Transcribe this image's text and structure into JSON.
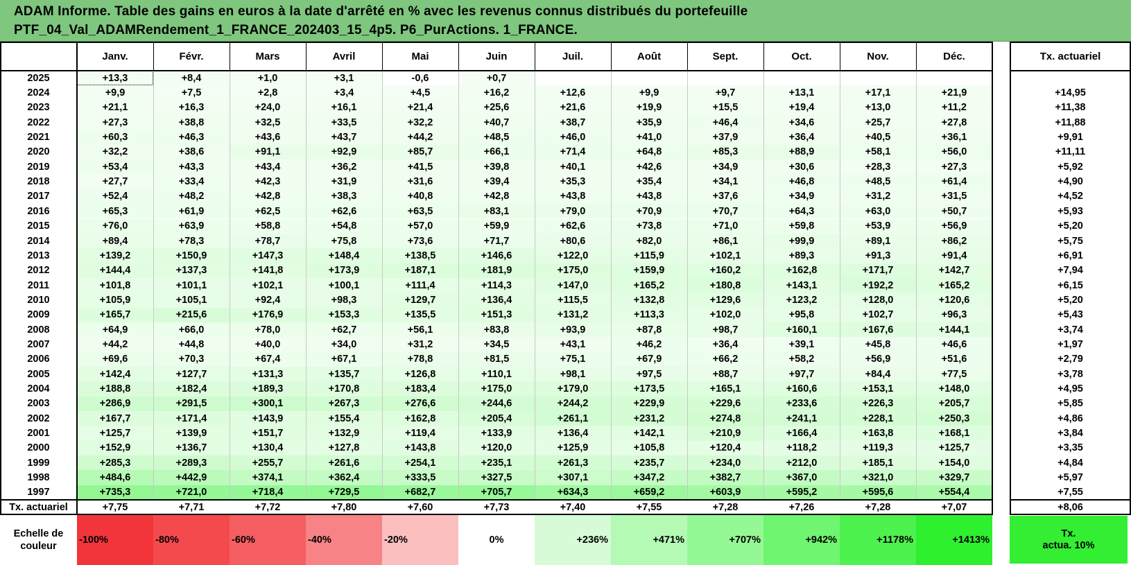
{
  "title": {
    "line1": "ADAM Informe. Table des gains en euros à la date d'arrêté en % avec les revenus connus distribués du portefeuille",
    "line2": "PTF_04_Val_ADAMRendement_1_FRANCE_202403_15_4p5. P6_PurActions. 1_FRANCE."
  },
  "months": [
    "Janv.",
    "Févr.",
    "Mars",
    "Avril",
    "Mai",
    "Juin",
    "Juil.",
    "Août",
    "Sept.",
    "Oct.",
    "Nov.",
    "Déc."
  ],
  "rate_header": "Tx. actuariel",
  "rows": [
    {
      "year": "2025",
      "values": [
        "+13,3",
        "+8,4",
        "+1,0",
        "+3,1",
        "-0,6",
        "+0,7",
        "",
        "",
        "",
        "",
        "",
        ""
      ],
      "rate": ""
    },
    {
      "year": "2024",
      "values": [
        "+9,9",
        "+7,5",
        "+2,8",
        "+3,4",
        "+4,5",
        "+16,2",
        "+12,6",
        "+9,9",
        "+9,7",
        "+13,1",
        "+17,1",
        "+21,9"
      ],
      "rate": "+14,95"
    },
    {
      "year": "2023",
      "values": [
        "+21,1",
        "+16,3",
        "+24,0",
        "+16,1",
        "+21,4",
        "+25,6",
        "+21,6",
        "+19,9",
        "+15,5",
        "+19,4",
        "+13,0",
        "+11,2"
      ],
      "rate": "+11,38"
    },
    {
      "year": "2022",
      "values": [
        "+27,3",
        "+38,8",
        "+32,5",
        "+33,5",
        "+32,2",
        "+40,7",
        "+38,7",
        "+35,9",
        "+46,4",
        "+34,6",
        "+25,7",
        "+27,8"
      ],
      "rate": "+11,88"
    },
    {
      "year": "2021",
      "values": [
        "+60,3",
        "+46,3",
        "+43,6",
        "+43,7",
        "+44,2",
        "+48,5",
        "+46,0",
        "+41,0",
        "+37,9",
        "+36,4",
        "+40,5",
        "+36,1"
      ],
      "rate": "+9,91"
    },
    {
      "year": "2020",
      "values": [
        "+32,2",
        "+38,6",
        "+91,1",
        "+92,9",
        "+85,7",
        "+66,1",
        "+71,4",
        "+64,8",
        "+85,3",
        "+88,9",
        "+58,1",
        "+56,0"
      ],
      "rate": "+11,11"
    },
    {
      "year": "2019",
      "values": [
        "+53,4",
        "+43,3",
        "+43,4",
        "+36,2",
        "+41,5",
        "+39,8",
        "+40,1",
        "+42,6",
        "+34,9",
        "+30,6",
        "+28,3",
        "+27,3"
      ],
      "rate": "+5,92"
    },
    {
      "year": "2018",
      "values": [
        "+27,7",
        "+33,4",
        "+42,3",
        "+31,9",
        "+31,6",
        "+39,4",
        "+35,3",
        "+35,4",
        "+34,1",
        "+46,8",
        "+48,5",
        "+61,4"
      ],
      "rate": "+4,90"
    },
    {
      "year": "2017",
      "values": [
        "+52,4",
        "+48,2",
        "+42,8",
        "+38,3",
        "+40,8",
        "+42,8",
        "+43,8",
        "+43,8",
        "+37,6",
        "+34,9",
        "+31,2",
        "+31,5"
      ],
      "rate": "+4,52"
    },
    {
      "year": "2016",
      "values": [
        "+65,3",
        "+61,9",
        "+62,5",
        "+62,6",
        "+63,5",
        "+83,1",
        "+79,0",
        "+70,9",
        "+70,7",
        "+64,3",
        "+63,0",
        "+50,7"
      ],
      "rate": "+5,93"
    },
    {
      "year": "2015",
      "values": [
        "+76,0",
        "+63,9",
        "+58,8",
        "+54,8",
        "+57,0",
        "+59,9",
        "+62,6",
        "+73,8",
        "+71,0",
        "+59,8",
        "+53,9",
        "+56,9"
      ],
      "rate": "+5,20"
    },
    {
      "year": "2014",
      "values": [
        "+89,4",
        "+78,3",
        "+78,7",
        "+75,8",
        "+73,6",
        "+71,7",
        "+80,6",
        "+82,0",
        "+86,1",
        "+99,9",
        "+89,1",
        "+86,2"
      ],
      "rate": "+5,75"
    },
    {
      "year": "2013",
      "values": [
        "+139,2",
        "+150,9",
        "+147,3",
        "+148,4",
        "+138,5",
        "+146,6",
        "+122,0",
        "+115,9",
        "+102,1",
        "+89,3",
        "+91,3",
        "+91,4"
      ],
      "rate": "+6,91"
    },
    {
      "year": "2012",
      "values": [
        "+144,4",
        "+137,3",
        "+141,8",
        "+173,9",
        "+187,1",
        "+181,9",
        "+175,0",
        "+159,9",
        "+160,2",
        "+162,8",
        "+171,7",
        "+142,7"
      ],
      "rate": "+7,94"
    },
    {
      "year": "2011",
      "values": [
        "+101,8",
        "+101,1",
        "+102,1",
        "+100,1",
        "+111,4",
        "+114,3",
        "+147,0",
        "+165,2",
        "+180,8",
        "+143,1",
        "+192,2",
        "+165,2"
      ],
      "rate": "+6,15"
    },
    {
      "year": "2010",
      "values": [
        "+105,9",
        "+105,1",
        "+92,4",
        "+98,3",
        "+129,7",
        "+136,4",
        "+115,5",
        "+132,8",
        "+129,6",
        "+123,2",
        "+128,0",
        "+120,6"
      ],
      "rate": "+5,20"
    },
    {
      "year": "2009",
      "values": [
        "+165,7",
        "+215,6",
        "+176,9",
        "+153,3",
        "+135,5",
        "+151,3",
        "+131,2",
        "+113,3",
        "+102,0",
        "+95,8",
        "+102,7",
        "+96,3"
      ],
      "rate": "+5,43"
    },
    {
      "year": "2008",
      "values": [
        "+64,9",
        "+66,0",
        "+78,0",
        "+62,7",
        "+56,1",
        "+83,8",
        "+93,9",
        "+87,8",
        "+98,7",
        "+160,1",
        "+167,6",
        "+144,1"
      ],
      "rate": "+3,74"
    },
    {
      "year": "2007",
      "values": [
        "+44,2",
        "+44,8",
        "+40,0",
        "+34,0",
        "+31,2",
        "+34,5",
        "+43,1",
        "+46,2",
        "+36,4",
        "+39,1",
        "+45,8",
        "+46,6"
      ],
      "rate": "+1,97"
    },
    {
      "year": "2006",
      "values": [
        "+69,6",
        "+70,3",
        "+67,4",
        "+67,1",
        "+78,8",
        "+81,5",
        "+75,1",
        "+67,9",
        "+66,2",
        "+58,2",
        "+56,9",
        "+51,6"
      ],
      "rate": "+2,79"
    },
    {
      "year": "2005",
      "values": [
        "+142,4",
        "+127,7",
        "+131,3",
        "+135,7",
        "+126,8",
        "+110,1",
        "+98,1",
        "+97,5",
        "+88,7",
        "+97,7",
        "+84,4",
        "+77,5"
      ],
      "rate": "+3,78"
    },
    {
      "year": "2004",
      "values": [
        "+188,8",
        "+182,4",
        "+189,3",
        "+170,8",
        "+183,4",
        "+175,0",
        "+179,0",
        "+173,5",
        "+165,1",
        "+160,6",
        "+153,1",
        "+148,0"
      ],
      "rate": "+4,95"
    },
    {
      "year": "2003",
      "values": [
        "+286,9",
        "+291,5",
        "+300,1",
        "+267,3",
        "+276,6",
        "+244,6",
        "+244,2",
        "+229,9",
        "+229,6",
        "+233,6",
        "+226,3",
        "+205,7"
      ],
      "rate": "+5,85"
    },
    {
      "year": "2002",
      "values": [
        "+167,7",
        "+171,4",
        "+143,9",
        "+155,4",
        "+162,8",
        "+205,4",
        "+261,1",
        "+231,2",
        "+274,8",
        "+241,1",
        "+228,1",
        "+250,3"
      ],
      "rate": "+4,86"
    },
    {
      "year": "2001",
      "values": [
        "+125,7",
        "+139,9",
        "+151,7",
        "+132,9",
        "+119,4",
        "+133,9",
        "+136,4",
        "+142,1",
        "+210,9",
        "+166,4",
        "+163,8",
        "+168,1"
      ],
      "rate": "+3,84"
    },
    {
      "year": "2000",
      "values": [
        "+152,9",
        "+136,7",
        "+130,4",
        "+127,8",
        "+143,8",
        "+120,0",
        "+125,9",
        "+105,8",
        "+120,4",
        "+118,2",
        "+119,3",
        "+125,7"
      ],
      "rate": "+3,35"
    },
    {
      "year": "1999",
      "values": [
        "+285,3",
        "+289,3",
        "+255,7",
        "+261,6",
        "+254,1",
        "+235,1",
        "+261,3",
        "+235,7",
        "+234,0",
        "+212,0",
        "+185,1",
        "+154,0"
      ],
      "rate": "+4,84"
    },
    {
      "year": "1998",
      "values": [
        "+484,6",
        "+442,9",
        "+374,1",
        "+362,4",
        "+333,5",
        "+327,5",
        "+307,1",
        "+347,2",
        "+382,7",
        "+367,0",
        "+321,0",
        "+329,7"
      ],
      "rate": "+5,97"
    },
    {
      "year": "1997",
      "values": [
        "+735,3",
        "+721,0",
        "+718,4",
        "+729,5",
        "+682,7",
        "+705,7",
        "+634,3",
        "+659,2",
        "+603,9",
        "+595,2",
        "+595,6",
        "+554,4"
      ],
      "rate": "+7,55"
    }
  ],
  "footer": {
    "label": "Tx. actuariel",
    "values": [
      "+7,75",
      "+7,71",
      "+7,72",
      "+7,80",
      "+7,60",
      "+7,73",
      "+7,40",
      "+7,55",
      "+7,28",
      "+7,26",
      "+7,28",
      "+7,07"
    ],
    "rate": "+8,06"
  },
  "scale": {
    "label_line1": "Echelle de",
    "label_line2": "couleur",
    "items": [
      {
        "text": "-100%",
        "color": "#f2353a"
      },
      {
        "text": "-80%",
        "color": "#f44a4e"
      },
      {
        "text": "-60%",
        "color": "#f55f62"
      },
      {
        "text": "-40%",
        "color": "#f88386"
      },
      {
        "text": "-20%",
        "color": "#fbbfc0"
      },
      {
        "text": "0%",
        "color": "#ffffff"
      },
      {
        "text": "+236%",
        "color": "#d6fbd6"
      },
      {
        "text": "+471%",
        "color": "#b4fab4"
      },
      {
        "text": "+707%",
        "color": "#94f894"
      },
      {
        "text": "+942%",
        "color": "#6ff56f"
      },
      {
        "text": "+1178%",
        "color": "#4ef24e"
      },
      {
        "text": "+1413%",
        "color": "#2ef02e"
      }
    ],
    "legend_line1": "Tx.",
    "legend_line2": "actua. 10%",
    "legend_color": "#33ee33"
  }
}
